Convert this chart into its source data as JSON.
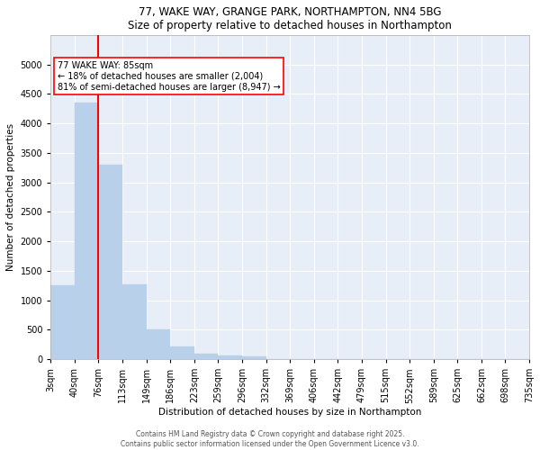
{
  "title": "77, WAKE WAY, GRANGE PARK, NORTHAMPTON, NN4 5BG",
  "subtitle": "Size of property relative to detached houses in Northampton",
  "xlabel": "Distribution of detached houses by size in Northampton",
  "ylabel": "Number of detached properties",
  "bar_values": [
    1250,
    4350,
    3300,
    1270,
    500,
    210,
    90,
    55,
    45,
    0,
    0,
    0,
    0,
    0,
    0,
    0,
    0,
    0,
    0,
    0
  ],
  "categories": [
    "3sqm",
    "40sqm",
    "76sqm",
    "113sqm",
    "149sqm",
    "186sqm",
    "223sqm",
    "259sqm",
    "296sqm",
    "332sqm",
    "369sqm",
    "406sqm",
    "442sqm",
    "479sqm",
    "515sqm",
    "552sqm",
    "589sqm",
    "625sqm",
    "662sqm",
    "698sqm",
    "735sqm"
  ],
  "bar_color": "#b8d0ea",
  "bar_edgecolor": "#b8d0ea",
  "vline_color": "red",
  "vline_x_bar_index": 1,
  "annotation_text": "77 WAKE WAY: 85sqm\n← 18% of detached houses are smaller (2,004)\n81% of semi-detached houses are larger (8,947) →",
  "annotation_box_color": "white",
  "annotation_box_edgecolor": "red",
  "ylim": [
    0,
    5500
  ],
  "yticks": [
    0,
    500,
    1000,
    1500,
    2000,
    2500,
    3000,
    3500,
    4000,
    4500,
    5000
  ],
  "background_color": "#e8eef7",
  "grid_color": "white",
  "footer_line1": "Contains HM Land Registry data © Crown copyright and database right 2025.",
  "footer_line2": "Contains public sector information licensed under the Open Government Licence v3.0.",
  "title_fontsize": 8.5,
  "axis_label_fontsize": 7.5,
  "tick_fontsize": 7,
  "annotation_fontsize": 7,
  "footer_fontsize": 5.5
}
